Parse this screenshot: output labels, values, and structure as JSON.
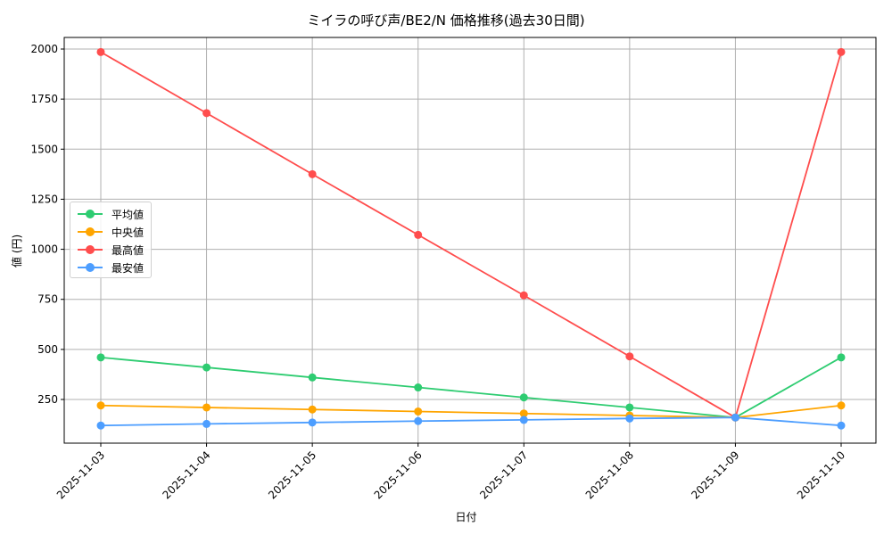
{
  "chart_data": {
    "type": "line",
    "title": "ミイラの呼び声/BE2/N 価格推移(過去30日間)",
    "xlabel": "日付",
    "ylabel": "値 (円)",
    "x": [
      "2025-11-03",
      "2025-11-04",
      "2025-11-05",
      "2025-11-06",
      "2025-11-07",
      "2025-11-08",
      "2025-11-09",
      "2025-11-10"
    ],
    "yticks": [
      250,
      500,
      750,
      1000,
      1250,
      1500,
      1750,
      2000
    ],
    "ylim": [
      60,
      2075
    ],
    "grid": true,
    "legend_position": "center left",
    "series": [
      {
        "name": "平均値",
        "color": "#2ecc71",
        "values": [
          460,
          410,
          360,
          310,
          260,
          210,
          160,
          460
        ]
      },
      {
        "name": "中央値",
        "color": "#ffa500",
        "values": [
          220,
          210,
          200,
          190,
          180,
          170,
          160,
          220
        ]
      },
      {
        "name": "最高値",
        "color": "#ff4d4d",
        "values": [
          1985,
          1680,
          1375,
          1072,
          770,
          465,
          160,
          1985
        ]
      },
      {
        "name": "最安値",
        "color": "#4d9eff",
        "values": [
          120,
          128,
          135,
          142,
          148,
          155,
          160,
          120
        ]
      }
    ]
  }
}
